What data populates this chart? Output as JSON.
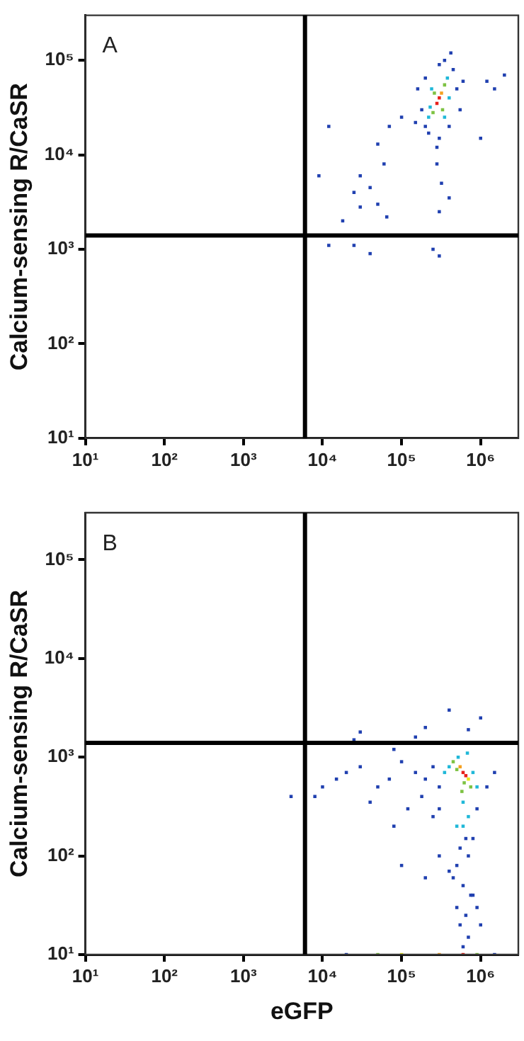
{
  "chart_data": [
    {
      "type": "scatter",
      "ylabel": "Calcium-sensing R/CaSR",
      "annotations": [
        "A"
      ],
      "log": "xy",
      "grid": false,
      "legend": false,
      "marker": "square",
      "xlim": [
        10,
        3000000
      ],
      "ylim": [
        10,
        300000
      ],
      "xticks": [
        {
          "value": 10,
          "label": "10¹"
        },
        {
          "value": 100,
          "label": "10²"
        },
        {
          "value": 1000,
          "label": "10³"
        },
        {
          "value": 10000,
          "label": "10⁴"
        },
        {
          "value": 100000,
          "label": "10⁵"
        },
        {
          "value": 1000000,
          "label": "10⁶"
        }
      ],
      "yticks": [
        {
          "value": 10,
          "label": "10¹"
        },
        {
          "value": 100,
          "label": "10²"
        },
        {
          "value": 1000,
          "label": "10³"
        },
        {
          "value": 10000,
          "label": "10⁴"
        },
        {
          "value": 100000,
          "label": "10⁵"
        }
      ],
      "ref_lines": [
        {
          "axis": "x",
          "value": 6000,
          "color": "#000000"
        },
        {
          "axis": "y",
          "value": 1400,
          "color": "#000000"
        }
      ],
      "x": [
        300000,
        280000,
        320000,
        250000,
        350000,
        260000,
        330000,
        220000,
        380000,
        240000,
        350000,
        230000,
        400000,
        200000,
        450000,
        300000,
        180000,
        500000,
        220000,
        300000,
        420000,
        160000,
        550000,
        280000,
        350000,
        150000,
        600000,
        200000,
        400000,
        100000,
        70000,
        50000,
        60000,
        30000,
        25000,
        40000,
        50000,
        18000,
        65000,
        30000,
        280000,
        320000,
        300000,
        400000,
        12000,
        1500000,
        2000000,
        1200000,
        1000000,
        12000,
        25000,
        40000,
        250000,
        300000,
        9000
      ],
      "values": [
        40000,
        35000,
        45000,
        28000,
        55000,
        45000,
        30000,
        25000,
        65000,
        50000,
        25000,
        32000,
        40000,
        20000,
        80000,
        90000,
        30000,
        50000,
        17000,
        15000,
        120000,
        50000,
        30000,
        12000,
        100000,
        22000,
        60000,
        65000,
        20000,
        25000,
        20000,
        13000,
        8000,
        6000,
        4000,
        4500,
        3000,
        2000,
        2200,
        2800,
        8000,
        5000,
        2500,
        3500,
        20000,
        50000,
        70000,
        60000,
        15000,
        1100,
        1100,
        900,
        1000,
        850,
        6000
      ],
      "colors": [
        "#e8201a",
        "#e8201a",
        "#f5a020",
        "#7dc242",
        "#7dc242",
        "#7dc242",
        "#7dc242",
        "#20b8d8",
        "#20b8d8",
        "#20b8d8",
        "#20b8d8",
        "#20b8d8",
        "#20b8d8",
        "#2040b0",
        "#2040b0",
        "#2040b0",
        "#2040b0",
        "#2040b0",
        "#2040b0",
        "#2040b0",
        "#2040b0",
        "#2040b0",
        "#2040b0",
        "#2040b0",
        "#2040b0",
        "#2040b0",
        "#2040b0",
        "#2040b0",
        "#2040b0",
        "#2040b0",
        "#2040b0",
        "#2040b0",
        "#2040b0",
        "#2040b0",
        "#2040b0",
        "#2040b0",
        "#2040b0",
        "#2040b0",
        "#2040b0",
        "#2040b0",
        "#2040b0",
        "#2040b0",
        "#2040b0",
        "#2040b0",
        "#2040b0",
        "#2040b0",
        "#2040b0",
        "#2040b0",
        "#2040b0",
        "#2040b0",
        "#2040b0",
        "#2040b0",
        "#2040b0",
        "#2040b0",
        "#2040b0"
      ]
    },
    {
      "type": "scatter",
      "xlabel": "eGFP",
      "ylabel": "Calcium-sensing R/CaSR",
      "annotations": [
        "B"
      ],
      "log": "xy",
      "grid": false,
      "legend": false,
      "marker": "square",
      "xlim": [
        10,
        3000000
      ],
      "ylim": [
        10,
        300000
      ],
      "xticks": [
        {
          "value": 10,
          "label": "10¹"
        },
        {
          "value": 100,
          "label": "10²"
        },
        {
          "value": 1000,
          "label": "10³"
        },
        {
          "value": 10000,
          "label": "10⁴"
        },
        {
          "value": 100000,
          "label": "10⁵"
        },
        {
          "value": 1000000,
          "label": "10⁶"
        }
      ],
      "yticks": [
        {
          "value": 10,
          "label": "10¹"
        },
        {
          "value": 100,
          "label": "10²"
        },
        {
          "value": 1000,
          "label": "10³"
        },
        {
          "value": 10000,
          "label": "10⁴"
        },
        {
          "value": 100000,
          "label": "10⁵"
        }
      ],
      "ref_lines": [
        {
          "axis": "x",
          "value": 6000,
          "color": "#000000"
        },
        {
          "axis": "y",
          "value": 1400,
          "color": "#000000"
        }
      ],
      "x": [
        600000,
        650000,
        550000,
        700000,
        500000,
        620000,
        450000,
        750000,
        580000,
        400000,
        800000,
        520000,
        680000,
        350000,
        900000,
        600000,
        300000,
        250000,
        200000,
        150000,
        100000,
        70000,
        50000,
        30000,
        20000,
        15000,
        10000,
        8000,
        120000,
        180000,
        250000,
        80000,
        40000,
        300000,
        500000,
        700000,
        900000,
        1200000,
        1500000,
        600000,
        650000,
        550000,
        700000,
        500000,
        800000,
        450000,
        600000,
        750000,
        400000,
        300000,
        200000,
        100000,
        500000,
        650000,
        550000,
        700000,
        800000,
        600000,
        900000,
        1000000,
        20000,
        50000,
        100000,
        300000,
        600000,
        900000,
        1500000,
        4000,
        30000,
        200000,
        700000,
        1000000,
        400000,
        150000,
        80000,
        25000
      ],
      "values": [
        700,
        650,
        800,
        600,
        750,
        550,
        900,
        500,
        450,
        800,
        700,
        1000,
        1100,
        700,
        500,
        350,
        500,
        800,
        600,
        700,
        900,
        600,
        500,
        800,
        700,
        600,
        500,
        400,
        300,
        400,
        250,
        200,
        350,
        300,
        200,
        250,
        300,
        500,
        700,
        200,
        150,
        120,
        100,
        80,
        150,
        60,
        50,
        40,
        70,
        100,
        60,
        80,
        30,
        25,
        20,
        15,
        40,
        12,
        30,
        20,
        10,
        10,
        10,
        10,
        10,
        10,
        10,
        400,
        1800,
        2000,
        1900,
        2500,
        3000,
        1600,
        1200,
        1500
      ],
      "colors": [
        "#e8201a",
        "#e8201a",
        "#f5a020",
        "#e8e81a",
        "#7dc242",
        "#7dc242",
        "#7dc242",
        "#7dc242",
        "#7dc242",
        "#20b8d8",
        "#20b8d8",
        "#20b8d8",
        "#20b8d8",
        "#20b8d8",
        "#20b8d8",
        "#20b8d8",
        "#2040b0",
        "#2040b0",
        "#2040b0",
        "#2040b0",
        "#2040b0",
        "#2040b0",
        "#2040b0",
        "#2040b0",
        "#2040b0",
        "#2040b0",
        "#2040b0",
        "#2040b0",
        "#2040b0",
        "#2040b0",
        "#2040b0",
        "#2040b0",
        "#2040b0",
        "#2040b0",
        "#20b8d8",
        "#20b8d8",
        "#2040b0",
        "#2040b0",
        "#2040b0",
        "#20b8d8",
        "#2040b0",
        "#2040b0",
        "#2040b0",
        "#2040b0",
        "#2040b0",
        "#2040b0",
        "#2040b0",
        "#2040b0",
        "#2040b0",
        "#2040b0",
        "#2040b0",
        "#2040b0",
        "#2040b0",
        "#2040b0",
        "#2040b0",
        "#2040b0",
        "#2040b0",
        "#2040b0",
        "#2040b0",
        "#2040b0",
        "#2040b0",
        "#7dc242",
        "#e8e81a",
        "#f5a020",
        "#e8201a",
        "#7dc242",
        "#2040b0",
        "#2040b0",
        "#2040b0",
        "#2040b0",
        "#2040b0",
        "#2040b0",
        "#2040b0",
        "#2040b0",
        "#2040b0",
        "#2040b0"
      ]
    }
  ]
}
